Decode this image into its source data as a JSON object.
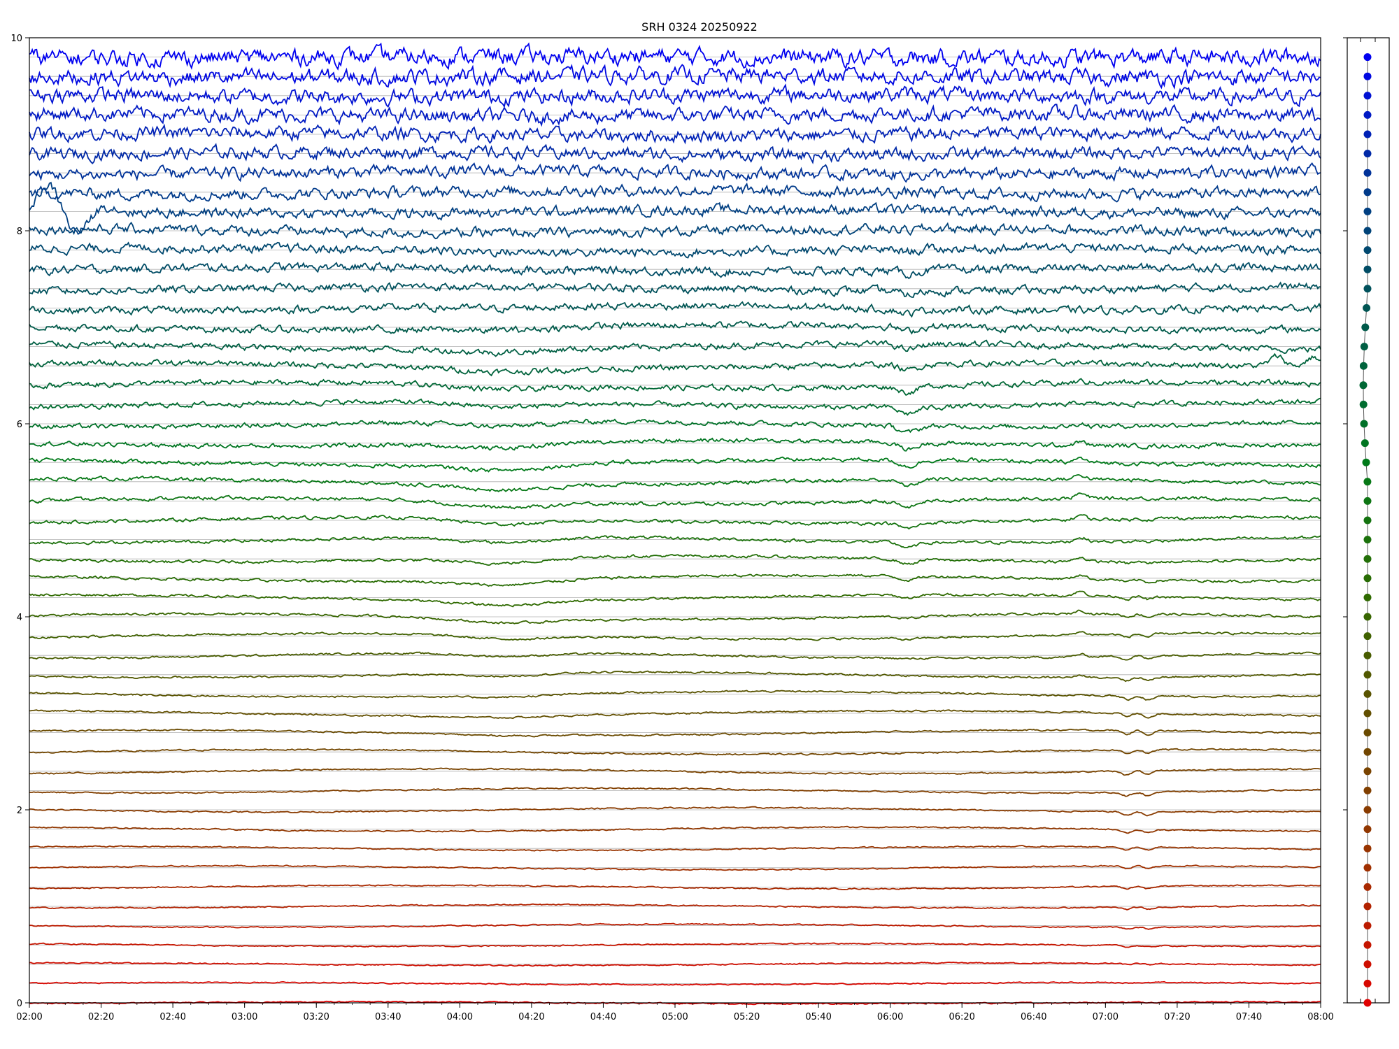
{
  "chart_data": [
    {
      "type": "line",
      "title": "SRH 0324 20250922",
      "xlabel": "",
      "ylabel": "",
      "xlim": [
        "02:00",
        "08:00"
      ],
      "ylim": [
        0,
        10
      ],
      "x_ticks": [
        "02:00",
        "02:20",
        "02:40",
        "03:00",
        "03:20",
        "03:40",
        "04:00",
        "04:20",
        "04:40",
        "05:00",
        "05:20",
        "05:40",
        "06:00",
        "06:20",
        "06:40",
        "07:00",
        "07:20",
        "07:40",
        "08:00"
      ],
      "y_ticks": [
        "0",
        "2",
        "4",
        "6",
        "8",
        "10"
      ],
      "grid": "horizontal lines at each trace baseline",
      "legend": "none",
      "n_traces": 50,
      "trace_spacing": 0.2,
      "trace_baselines": [
        0.0,
        0.2,
        0.4,
        0.6,
        0.8,
        1.0,
        1.2,
        1.4,
        1.6,
        1.8,
        2.0,
        2.2,
        2.4,
        2.6,
        2.8,
        3.0,
        3.2,
        3.4,
        3.6,
        3.8,
        4.0,
        4.2,
        4.4,
        4.6,
        4.8,
        5.0,
        5.2,
        5.4,
        5.6,
        5.8,
        6.0,
        6.2,
        6.4,
        6.6,
        6.8,
        7.0,
        7.2,
        7.4,
        7.6,
        7.8,
        8.0,
        8.2,
        8.4,
        8.6,
        8.8,
        9.0,
        9.2,
        9.4,
        9.6,
        9.8
      ],
      "color_gradient": [
        "#e00000",
        "#a03000",
        "#6a4a00",
        "#2f6a00",
        "#007a1a",
        "#005a4a",
        "#003a8a",
        "#0000f0"
      ],
      "events": [
        {
          "time": "04:12",
          "type": "dip",
          "traces": "mid"
        },
        {
          "time": "06:05",
          "type": "dip",
          "traces": "mid-upper"
        },
        {
          "time": "06:53",
          "type": "spike",
          "traces": "mid"
        },
        {
          "time": "07:06",
          "type": "dip",
          "traces": "lower"
        },
        {
          "time": "07:12",
          "type": "dip",
          "traces": "lower"
        },
        {
          "time": "02:10",
          "type": "large oscillation",
          "traces": "8.2 baseline"
        },
        {
          "time": "07:50",
          "type": "bumps",
          "traces": "6.6 baseline"
        }
      ]
    },
    {
      "type": "scatter",
      "description_series": "trace baseline markers",
      "n_points": 50,
      "colors": "same gradient as traces, red at bottom to blue at top"
    }
  ]
}
